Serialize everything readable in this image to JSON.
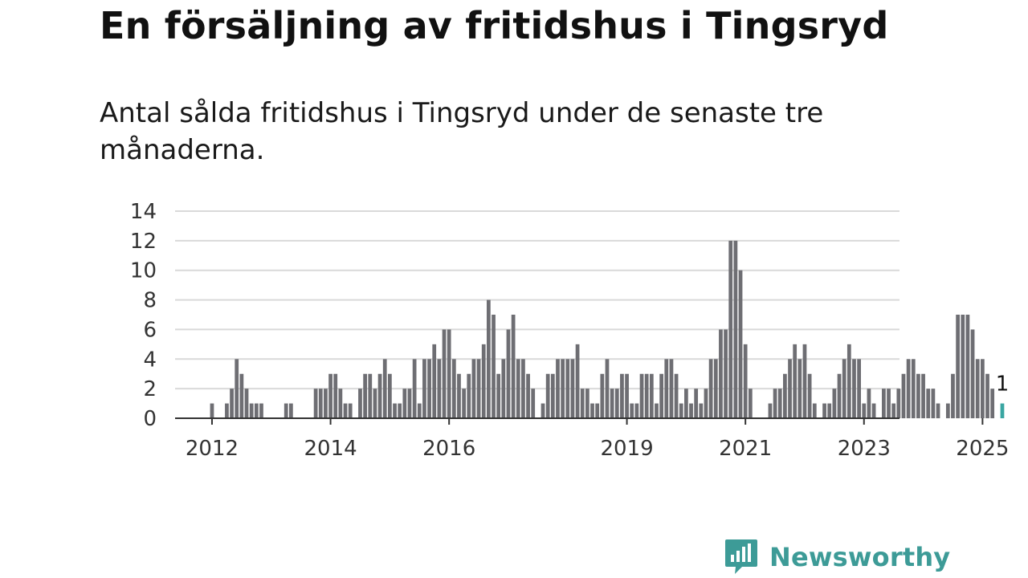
{
  "title": "En försäljning av fritidshus i Tingsryd",
  "subtitle": "Antal sålda fritidshus i Tingsryd under de senaste tre månaderna.",
  "brand": {
    "name": "Newsworthy",
    "icon": "bar-chart-speech-bubble-icon",
    "color": "#3d9b97"
  },
  "colors": {
    "bar": "#6e6e73",
    "highlight": "#3aa6a2",
    "grid": "#d9d9d9",
    "axis": "#333333"
  },
  "chart_data": {
    "type": "bar",
    "ylim": [
      0,
      14
    ],
    "yticks": [
      0,
      2,
      4,
      6,
      8,
      10,
      12,
      14
    ],
    "xticks": [
      2012,
      2014,
      2016,
      2019,
      2021,
      2023,
      2025
    ],
    "grid": true,
    "x_start": "2011-07",
    "frequency": "monthly",
    "values": [
      0,
      0,
      0,
      0,
      0,
      0,
      1,
      0,
      0,
      1,
      2,
      4,
      3,
      2,
      1,
      1,
      1,
      0,
      0,
      0,
      0,
      1,
      1,
      0,
      0,
      0,
      0,
      2,
      2,
      2,
      3,
      3,
      2,
      1,
      1,
      0,
      2,
      3,
      3,
      2,
      3,
      4,
      3,
      1,
      1,
      2,
      2,
      4,
      1,
      4,
      4,
      5,
      4,
      6,
      6,
      4,
      3,
      2,
      3,
      4,
      4,
      5,
      8,
      7,
      3,
      4,
      6,
      7,
      4,
      4,
      3,
      2,
      0,
      1,
      3,
      3,
      4,
      4,
      4,
      4,
      5,
      2,
      2,
      1,
      1,
      3,
      4,
      2,
      2,
      3,
      3,
      1,
      1,
      3,
      3,
      3,
      1,
      3,
      4,
      4,
      3,
      1,
      2,
      1,
      2,
      1,
      2,
      4,
      4,
      6,
      6,
      12,
      12,
      10,
      5,
      2,
      0,
      0,
      0,
      1,
      2,
      2,
      3,
      4,
      5,
      4,
      5,
      3,
      1,
      0,
      1,
      1,
      2,
      3,
      4,
      5,
      4,
      4,
      1,
      2,
      1,
      0,
      2,
      2,
      1,
      2,
      3,
      4,
      4,
      3,
      3,
      2,
      2,
      1,
      0,
      1,
      3,
      7,
      7,
      7,
      6,
      4,
      4,
      3,
      2,
      0,
      1
    ],
    "highlight_last": true,
    "annotation": "1"
  }
}
